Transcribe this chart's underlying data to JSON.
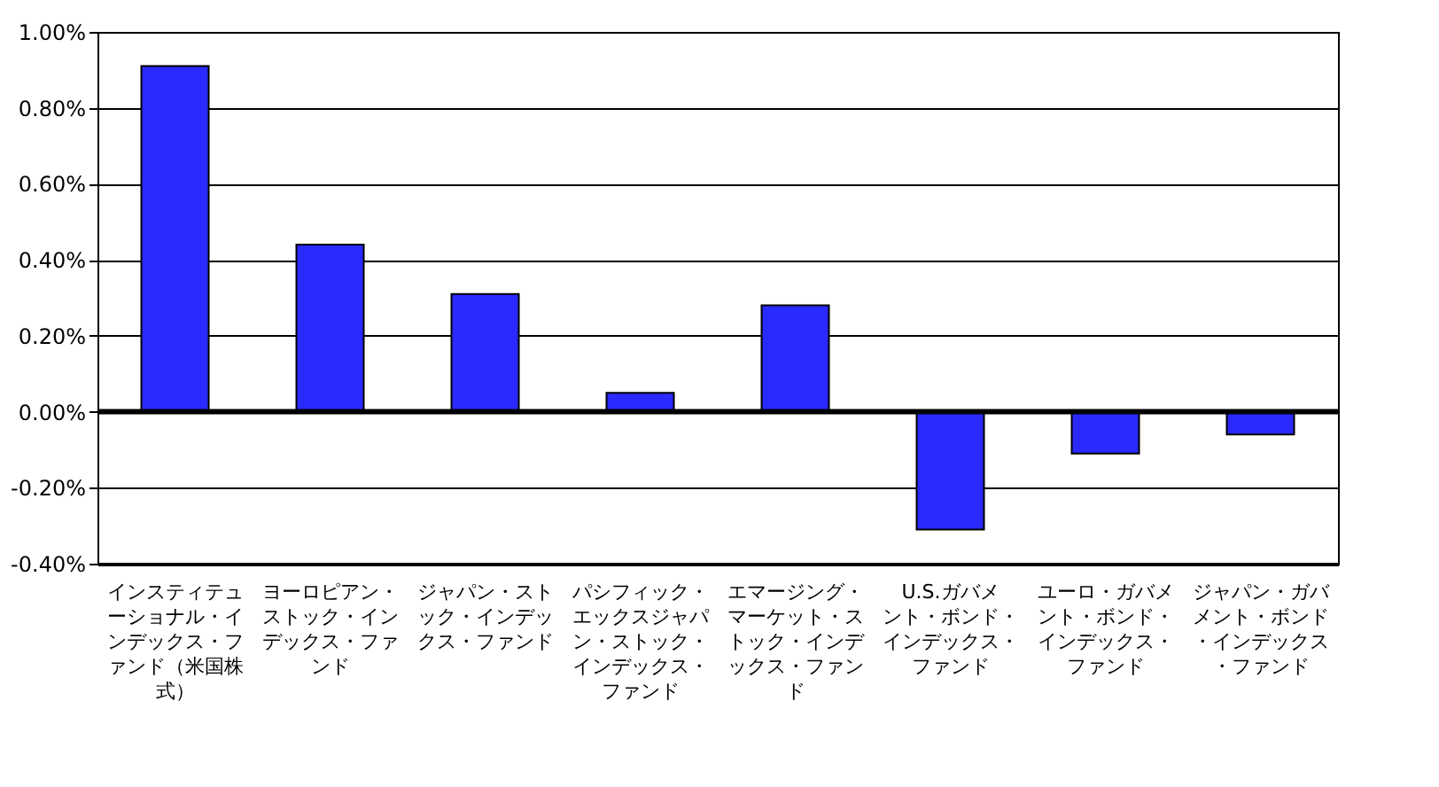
{
  "chart_data": {
    "type": "bar",
    "categories": [
      "インスティテューショナル・インデックス・ファンド（米国株式）",
      "ヨーロピアン・ストック・インデックス・ファンド",
      "ジャパン・ストック・インデックス・ファンド",
      "パシフィック・エックスジャパン・ストック・インデックス・ファンド",
      "エマージング・マーケット・ストック・インデックス・ファンド",
      "U.S.ガバメント・ボンド・インデックス・ファンド",
      "ユーロ・ガバメント・ボンド・インデックス・ファンド",
      "ジャパン・ガバメント・ボンド・インデックス・ファンド"
    ],
    "values": [
      0.91,
      0.44,
      0.31,
      0.05,
      0.28,
      -0.31,
      -0.11,
      -0.06
    ],
    "color": "#2a2aff",
    "ylim": [
      -0.4,
      1.0
    ],
    "yticks": [
      {
        "value": -0.4,
        "label": "-0.40%"
      },
      {
        "value": -0.2,
        "label": "-0.20%"
      },
      {
        "value": 0,
        "label": "0.00%"
      },
      {
        "value": 0.2,
        "label": "0.20%"
      },
      {
        "value": 0.4,
        "label": "0.40%"
      },
      {
        "value": 0.6,
        "label": "0.60%"
      },
      {
        "value": 0.8,
        "label": "0.80%"
      },
      {
        "value": 1.0,
        "label": "1.00%"
      }
    ],
    "ref_lines": [
      {
        "axis": "y",
        "value": 0,
        "label": null
      }
    ],
    "grid": "y"
  }
}
